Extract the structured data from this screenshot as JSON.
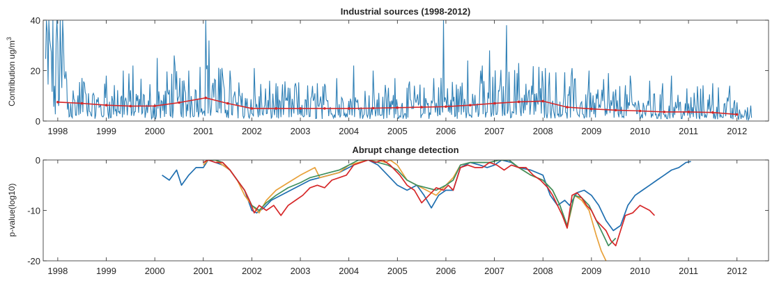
{
  "chart_data": [
    {
      "type": "line",
      "title": "Industrial sources (1998-2012)",
      "ylabel": "Contribution ug/m",
      "ylabel_sup": "3",
      "xlabel": "",
      "xlim": [
        1997.7,
        2012.65
      ],
      "ylim": [
        0,
        40
      ],
      "yticks": [
        0,
        20,
        40
      ],
      "xticks": [
        "1998",
        "1999",
        "2000",
        "2001",
        "2002",
        "2003",
        "2004",
        "2005",
        "2006",
        "2007",
        "2008",
        "2009",
        "2010",
        "2011",
        "2012"
      ],
      "grid": false,
      "colors": {
        "raw": "#2e7fb5",
        "trend": "#d62728"
      },
      "series": [
        {
          "role": "raw",
          "x_range": [
            1997.75,
            2012.3
          ],
          "baseline": [
            [
              1997.75,
              21
            ],
            [
              1997.85,
              28
            ],
            [
              1997.95,
              8
            ],
            [
              1998.05,
              25
            ],
            [
              1998.3,
              5
            ],
            [
              1998.6,
              7
            ],
            [
              1998.9,
              5
            ],
            [
              1999.2,
              7
            ],
            [
              1999.5,
              6
            ],
            [
              1999.8,
              6
            ],
            [
              2000.0,
              4
            ],
            [
              2000.3,
              8
            ],
            [
              2000.6,
              7
            ],
            [
              2000.9,
              7
            ],
            [
              2001.05,
              12
            ],
            [
              2001.3,
              9
            ],
            [
              2001.6,
              7
            ],
            [
              2002.0,
              5
            ],
            [
              2002.5,
              5
            ],
            [
              2003.0,
              5
            ],
            [
              2003.5,
              5
            ],
            [
              2004.0,
              5
            ],
            [
              2004.5,
              5
            ],
            [
              2005.0,
              5
            ],
            [
              2005.5,
              5
            ],
            [
              2006.0,
              6
            ],
            [
              2006.5,
              6
            ],
            [
              2007.0,
              7
            ],
            [
              2007.5,
              7
            ],
            [
              2008.0,
              7
            ],
            [
              2008.5,
              6
            ],
            [
              2009.0,
              6
            ],
            [
              2009.5,
              5
            ],
            [
              2010.0,
              5
            ],
            [
              2010.5,
              5
            ],
            [
              2011.0,
              4
            ],
            [
              2011.5,
              5
            ],
            [
              2012.0,
              3
            ],
            [
              2012.3,
              2
            ]
          ],
          "peaks": [
            [
              1997.98,
              40
            ],
            [
              1998.55,
              15
            ],
            [
              1999.0,
              18
            ],
            [
              1999.35,
              20
            ],
            [
              1999.55,
              22
            ],
            [
              2000.05,
              25
            ],
            [
              2000.4,
              26
            ],
            [
              2000.7,
              20
            ],
            [
              2001.05,
              40
            ],
            [
              2001.4,
              18
            ],
            [
              2001.55,
              20
            ],
            [
              2002.05,
              21
            ],
            [
              2002.5,
              15
            ],
            [
              2002.9,
              15
            ],
            [
              2003.35,
              15
            ],
            [
              2003.75,
              17
            ],
            [
              2004.1,
              22
            ],
            [
              2004.5,
              20
            ],
            [
              2004.95,
              17
            ],
            [
              2005.35,
              14
            ],
            [
              2005.75,
              17
            ],
            [
              2005.95,
              40
            ],
            [
              2006.45,
              24
            ],
            [
              2006.75,
              22
            ],
            [
              2006.9,
              28
            ],
            [
              2007.25,
              38
            ],
            [
              2007.5,
              23
            ],
            [
              2008.05,
              21
            ],
            [
              2008.6,
              21
            ],
            [
              2008.95,
              20
            ],
            [
              2009.35,
              19
            ],
            [
              2009.8,
              18
            ],
            [
              2010.2,
              16
            ],
            [
              2010.65,
              18
            ],
            [
              2011.5,
              15
            ],
            [
              2011.85,
              14
            ]
          ]
        },
        {
          "role": "trend",
          "x": [
            1998.0,
            1998.5,
            1999.0,
            1999.5,
            2000.0,
            2000.5,
            2001.05,
            2001.5,
            2002.0,
            2002.5,
            2003.0,
            2003.5,
            2004.0,
            2004.5,
            2005.0,
            2005.5,
            2006.0,
            2006.5,
            2007.0,
            2007.5,
            2008.0,
            2008.5,
            2009.0,
            2009.5,
            2010.0,
            2010.5,
            2011.0,
            2011.5,
            2012.0
          ],
          "y": [
            7.5,
            7.0,
            6.3,
            5.9,
            6.0,
            7.3,
            9.2,
            7.0,
            5.0,
            5.0,
            5.0,
            5.0,
            5.0,
            5.1,
            5.3,
            5.5,
            5.7,
            6.3,
            7.0,
            7.6,
            7.9,
            5.5,
            4.8,
            4.3,
            4.0,
            3.6,
            3.6,
            3.4,
            2.6
          ]
        }
      ]
    },
    {
      "type": "line",
      "title": "Abrupt change detection",
      "ylabel": "p-value(log10)",
      "xlabel": "",
      "xlim": [
        1997.7,
        2012.65
      ],
      "ylim": [
        -20,
        0
      ],
      "yticks": [
        0,
        -10,
        -20
      ],
      "xticks": [
        "1998",
        "1999",
        "2000",
        "2001",
        "2002",
        "2003",
        "2004",
        "2005",
        "2006",
        "2007",
        "2008",
        "2009",
        "2010",
        "2011",
        "2012"
      ],
      "grid": false,
      "series": [
        {
          "color": "#1f6fb0",
          "x": [
            2000.15,
            2000.3,
            2000.45,
            2000.55,
            2000.7,
            2000.85,
            2001.0,
            2001.1,
            2001.25,
            2001.4,
            2001.55,
            2001.7,
            2001.85,
            2002.0,
            2002.1,
            2002.25,
            2002.4,
            2002.6,
            2002.8,
            2003.0,
            2003.2,
            2003.4,
            2003.6,
            2003.8,
            2004.0,
            2004.2,
            2004.4,
            2004.6,
            2004.8,
            2005.0,
            2005.2,
            2005.4,
            2005.55,
            2005.7,
            2005.85,
            2006.0,
            2006.15,
            2006.3,
            2006.5,
            2006.7,
            2006.85,
            2007.0,
            2007.15,
            2007.35,
            2007.5,
            2007.75,
            2008.0,
            2008.15,
            2008.3,
            2008.45,
            2008.55,
            2008.7,
            2008.85,
            2009.0,
            2009.15,
            2009.3,
            2009.45,
            2009.6,
            2009.75,
            2009.9,
            2010.05,
            2010.2,
            2010.35,
            2010.5,
            2010.65,
            2010.8,
            2010.95,
            2011.05
          ],
          "y": [
            -3,
            -4,
            -2,
            -5,
            -3,
            -1.5,
            -1.5,
            0,
            -0.5,
            -1,
            -2,
            -4,
            -6,
            -10,
            -10.5,
            -9.5,
            -8,
            -7,
            -6,
            -5,
            -4,
            -3.5,
            -3,
            -2.5,
            -1.5,
            -0.5,
            0,
            -1,
            -3,
            -5,
            -6,
            -5,
            -7,
            -9.5,
            -7,
            -6,
            -6,
            -1.5,
            -0.5,
            -1,
            -1.5,
            -1,
            0,
            -0.5,
            -1.5,
            -2,
            -3,
            -7,
            -9,
            -8,
            -9,
            -6.5,
            -6,
            -7,
            -9,
            -12,
            -14,
            -13,
            -9,
            -7,
            -6,
            -5,
            -4,
            -3,
            -2,
            -1.5,
            -0.5,
            -0.3
          ]
        },
        {
          "color": "#e8a13a",
          "x": [
            2001.0,
            2001.1,
            2001.25,
            2001.4,
            2001.55,
            2001.7,
            2001.85,
            2002.0,
            2002.15,
            2002.3,
            2002.5,
            2002.75,
            2003.0,
            2003.2,
            2003.3,
            2003.4,
            2003.6,
            2003.8,
            2004.0,
            2004.2,
            2004.4,
            2004.6,
            2004.75,
            2004.85,
            2005.0,
            2005.2,
            2005.4,
            2005.6,
            2005.8,
            2006.0,
            2006.15,
            2006.3,
            2006.5,
            2006.7,
            2006.9,
            2007.1,
            2007.3,
            2007.5,
            2007.75,
            2008.0,
            2008.2,
            2008.35,
            2008.5,
            2008.65,
            2008.8,
            2008.95,
            2009.1,
            2009.2,
            2009.3
          ],
          "y": [
            -1,
            0,
            0,
            -1,
            -2,
            -4,
            -7,
            -9,
            -10.5,
            -8,
            -6,
            -4.5,
            -3,
            -2,
            -1.5,
            -3.5,
            -3,
            -2.5,
            -1,
            -0.5,
            0,
            0,
            -0.5,
            0,
            -1,
            -4,
            -5,
            -6,
            -7,
            -5,
            -3.5,
            -1,
            -0.5,
            -0.5,
            -0.5,
            0,
            0,
            -1.5,
            -3,
            -4,
            -6,
            -9,
            -13.5,
            -7,
            -8,
            -10,
            -15,
            -18,
            -20
          ]
        },
        {
          "color": "#3e8f5e",
          "x": [
            2001.0,
            2001.1,
            2001.25,
            2001.4,
            2001.55,
            2001.7,
            2001.85,
            2002.0,
            2002.15,
            2002.3,
            2002.5,
            2002.75,
            2003.0,
            2003.2,
            2003.4,
            2003.6,
            2003.8,
            2004.0,
            2004.2,
            2004.4,
            2004.6,
            2004.8,
            2005.0,
            2005.2,
            2005.4,
            2005.6,
            2005.8,
            2006.0,
            2006.15,
            2006.3,
            2006.5,
            2006.7,
            2006.9,
            2007.1,
            2007.3,
            2007.5,
            2007.75,
            2008.0,
            2008.2,
            2008.35,
            2008.5,
            2008.65,
            2008.8,
            2008.95,
            2009.1,
            2009.25,
            2009.35,
            2009.5
          ],
          "y": [
            -0.5,
            0,
            0,
            -0.5,
            -2,
            -4,
            -6,
            -9,
            -10,
            -8.5,
            -7,
            -5.5,
            -4.5,
            -3.5,
            -3,
            -2.5,
            -2,
            -1,
            0,
            0,
            -0.5,
            -1,
            -2,
            -4,
            -5,
            -5.5,
            -6,
            -5,
            -4,
            -1,
            -0.5,
            -0.5,
            -0.5,
            0,
            0,
            -1.5,
            -3,
            -4,
            -6,
            -9,
            -13,
            -7,
            -7.5,
            -9,
            -12,
            -15,
            -17,
            -15.5
          ]
        },
        {
          "color": "#d62728",
          "x": [
            2001.0,
            2001.1,
            2001.25,
            2001.4,
            2001.55,
            2001.7,
            2001.85,
            2001.95,
            2002.05,
            2002.15,
            2002.3,
            2002.45,
            2002.6,
            2002.75,
            2002.9,
            2003.05,
            2003.2,
            2003.35,
            2003.5,
            2003.65,
            2003.8,
            2003.95,
            2004.1,
            2004.25,
            2004.4,
            2004.55,
            2004.7,
            2004.85,
            2004.95,
            2005.05,
            2005.2,
            2005.35,
            2005.5,
            2005.65,
            2005.8,
            2005.95,
            2006.05,
            2006.15,
            2006.3,
            2006.45,
            2006.6,
            2006.75,
            2006.9,
            2007.05,
            2007.2,
            2007.35,
            2007.5,
            2007.65,
            2007.8,
            2007.95,
            2008.1,
            2008.2,
            2008.3,
            2008.4,
            2008.5,
            2008.6,
            2008.7,
            2008.8,
            2008.9,
            2009.0,
            2009.1,
            2009.2,
            2009.3,
            2009.4,
            2009.5,
            2009.6,
            2009.7,
            2009.85,
            2010.0,
            2010.1,
            2010.2,
            2010.3
          ],
          "y": [
            -0.5,
            0,
            -0.5,
            -0.5,
            -2,
            -4,
            -6,
            -8,
            -10.5,
            -9,
            -10,
            -9,
            -11,
            -9,
            -8,
            -7,
            -5.5,
            -5,
            -5.5,
            -4,
            -3.5,
            -3,
            -1,
            -0.5,
            0,
            -0.5,
            0,
            -1,
            -2,
            -3,
            -5,
            -6,
            -8.5,
            -7,
            -5.5,
            -6,
            -5,
            -6,
            -1.5,
            -1,
            -1.5,
            -1.5,
            -0.5,
            -1,
            -2,
            -1,
            -1.5,
            -1.5,
            -3,
            -4,
            -5.5,
            -7,
            -9,
            -11,
            -13.5,
            -7,
            -6.5,
            -7.5,
            -9,
            -10,
            -12,
            -13,
            -14,
            -16,
            -17,
            -14,
            -11,
            -10.5,
            -9,
            -9.5,
            -10,
            -11
          ]
        }
      ]
    }
  ]
}
